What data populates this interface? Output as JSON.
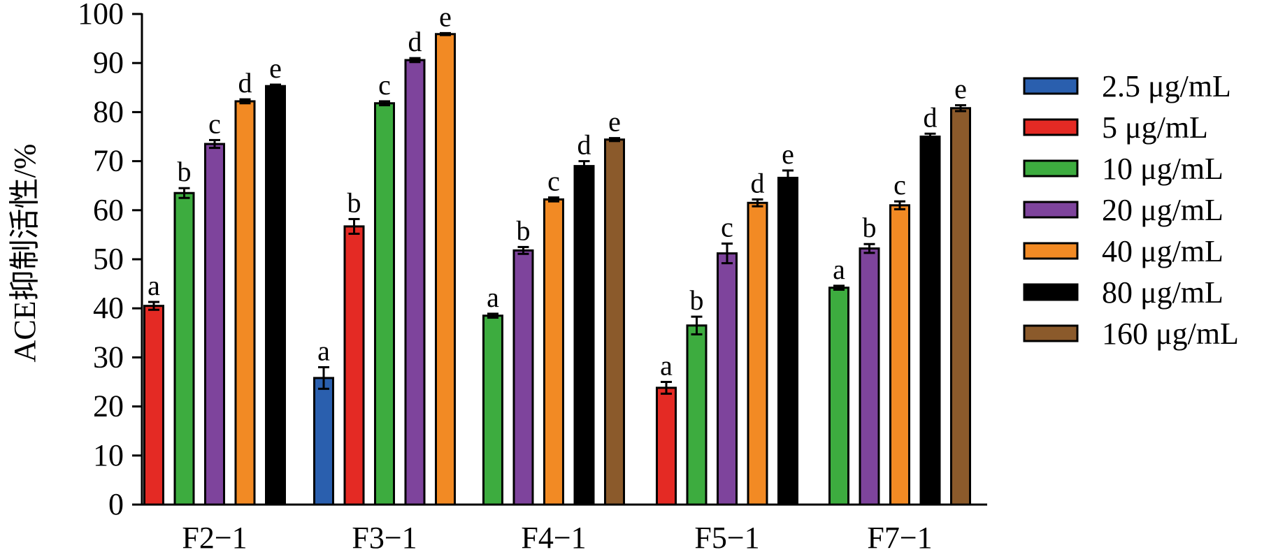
{
  "chart_data": {
    "type": "bar",
    "ylabel": "ACE抑制活性/%",
    "ylim": [
      0,
      100
    ],
    "yticks": [
      0,
      10,
      20,
      30,
      40,
      50,
      60,
      70,
      80,
      90,
      100
    ],
    "categories": [
      "F2−1",
      "F3−1",
      "F4−1",
      "F5−1",
      "F7−1"
    ],
    "legend_position": "right",
    "series": [
      {
        "name": "2.5 μg/mL",
        "color": "#2a5fae"
      },
      {
        "name": "5 μg/mL",
        "color": "#e42a24"
      },
      {
        "name": "10 μg/mL",
        "color": "#3dac3f"
      },
      {
        "name": "20 μg/mL",
        "color": "#7e449c"
      },
      {
        "name": "40 μg/mL",
        "color": "#f28a24"
      },
      {
        "name": "80 μg/mL",
        "color": "#000000"
      },
      {
        "name": "160 μg/mL",
        "color": "#8b5a2b"
      }
    ],
    "groups": [
      {
        "category": "F2−1",
        "bars": [
          {
            "series": 1,
            "value": 40.5,
            "error": 0.8,
            "letter": "a"
          },
          {
            "series": 2,
            "value": 63.5,
            "error": 1.0,
            "letter": "b"
          },
          {
            "series": 3,
            "value": 73.5,
            "error": 0.8,
            "letter": "c"
          },
          {
            "series": 4,
            "value": 82.2,
            "error": 0.4,
            "letter": "d"
          },
          {
            "series": 5,
            "value": 85.3,
            "error": 0.3,
            "letter": "e"
          }
        ]
      },
      {
        "category": "F3−1",
        "bars": [
          {
            "series": 0,
            "value": 25.8,
            "error": 2.2,
            "letter": "a"
          },
          {
            "series": 1,
            "value": 56.7,
            "error": 1.5,
            "letter": "b"
          },
          {
            "series": 2,
            "value": 81.8,
            "error": 0.4,
            "letter": "c"
          },
          {
            "series": 3,
            "value": 90.6,
            "error": 0.4,
            "letter": "d"
          },
          {
            "series": 4,
            "value": 95.9,
            "error": 0.2,
            "letter": "e"
          }
        ]
      },
      {
        "category": "F4−1",
        "bars": [
          {
            "series": 2,
            "value": 38.5,
            "error": 0.4,
            "letter": "a"
          },
          {
            "series": 3,
            "value": 51.8,
            "error": 0.7,
            "letter": "b"
          },
          {
            "series": 4,
            "value": 62.2,
            "error": 0.4,
            "letter": "c"
          },
          {
            "series": 5,
            "value": 69.0,
            "error": 1.0,
            "letter": "d"
          },
          {
            "series": 6,
            "value": 74.4,
            "error": 0.3,
            "letter": "e"
          }
        ]
      },
      {
        "category": "F5−1",
        "bars": [
          {
            "series": 1,
            "value": 23.8,
            "error": 1.2,
            "letter": "a"
          },
          {
            "series": 2,
            "value": 36.5,
            "error": 1.8,
            "letter": "b"
          },
          {
            "series": 3,
            "value": 51.2,
            "error": 2.0,
            "letter": "c"
          },
          {
            "series": 4,
            "value": 61.5,
            "error": 0.7,
            "letter": "d"
          },
          {
            "series": 5,
            "value": 66.6,
            "error": 1.5,
            "letter": "e"
          }
        ]
      },
      {
        "category": "F7−1",
        "bars": [
          {
            "series": 2,
            "value": 44.2,
            "error": 0.4,
            "letter": "a"
          },
          {
            "series": 3,
            "value": 52.2,
            "error": 0.9,
            "letter": "b"
          },
          {
            "series": 4,
            "value": 61.0,
            "error": 0.8,
            "letter": "c"
          },
          {
            "series": 5,
            "value": 75.0,
            "error": 0.6,
            "letter": "d"
          },
          {
            "series": 6,
            "value": 80.8,
            "error": 0.6,
            "letter": "e"
          }
        ]
      }
    ]
  }
}
